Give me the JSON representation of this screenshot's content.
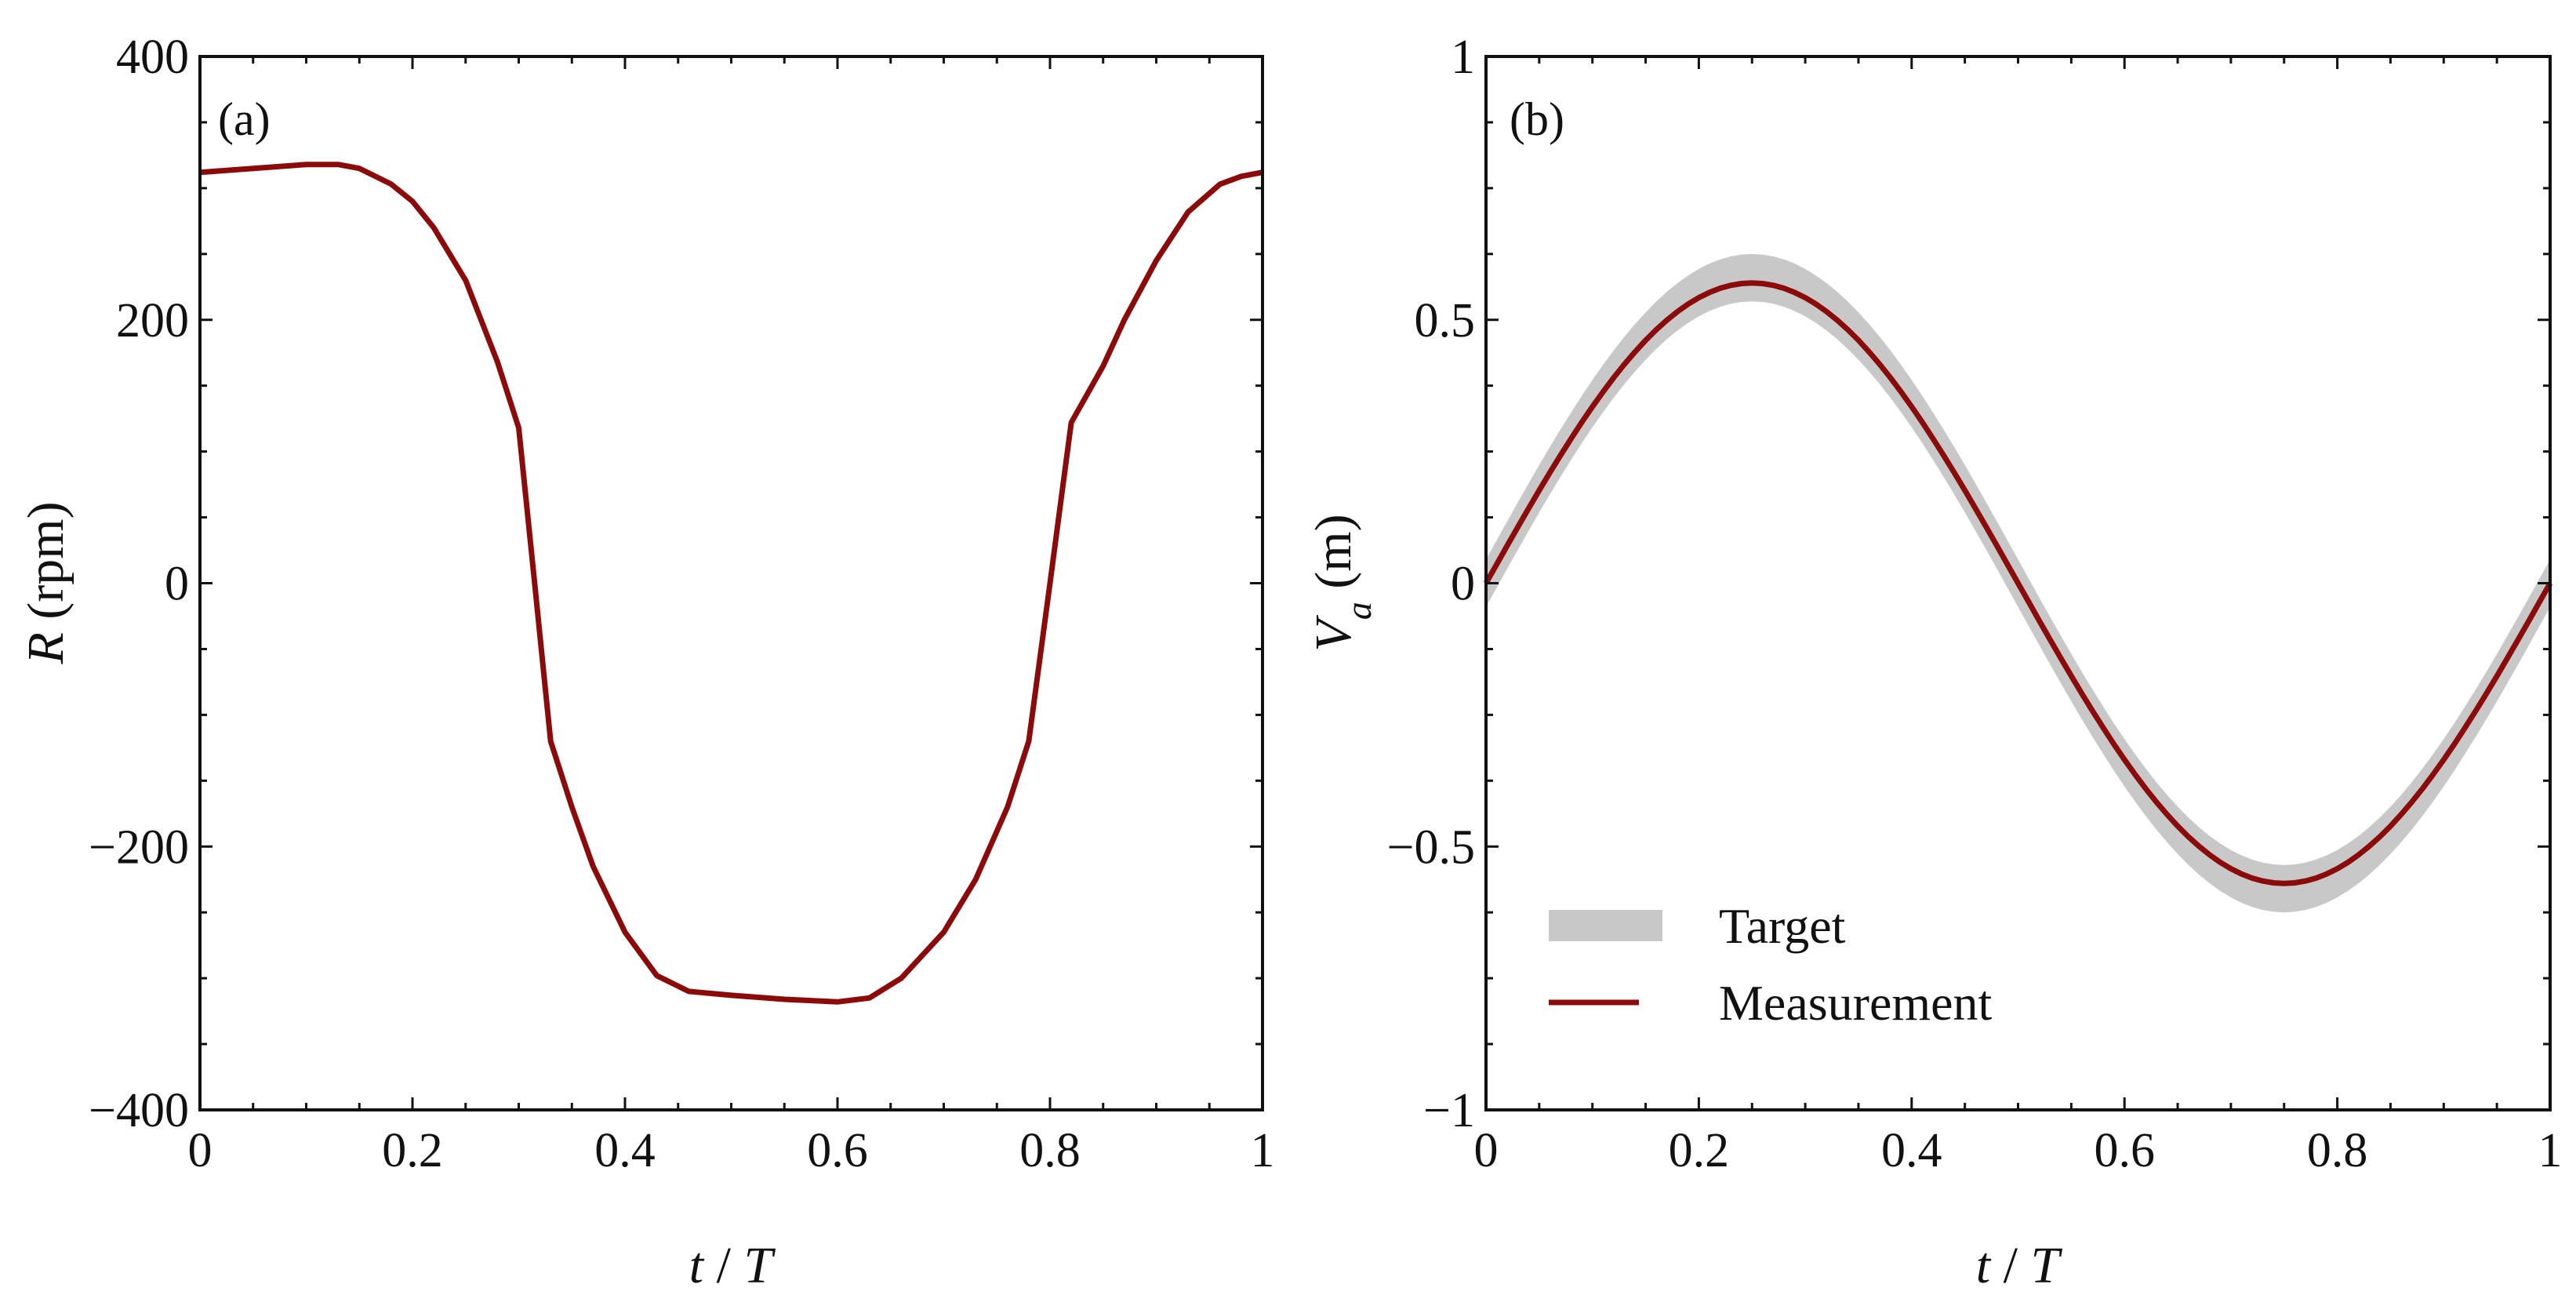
{
  "chart_data": [
    {
      "id": "a",
      "type": "line",
      "panel_label": "(a)",
      "title": "",
      "xlabel": {
        "italic": "t",
        "sep": " / ",
        "italic2": "T"
      },
      "ylabel": {
        "italic": "R",
        "rest": " (rpm)"
      },
      "xlim": [
        0,
        1
      ],
      "ylim": [
        -400,
        400
      ],
      "xticks": [
        0,
        0.2,
        0.4,
        0.6,
        0.8,
        1
      ],
      "xtick_labels": [
        "0",
        "0.2",
        "0.4",
        "0.6",
        "0.8",
        "1"
      ],
      "yticks": [
        -400,
        -200,
        0,
        200,
        400
      ],
      "ytick_labels": [
        "−400",
        "−200",
        "0",
        "200",
        "400"
      ],
      "grid": false,
      "series": [
        {
          "name": "R",
          "color": "#8b0a0a",
          "x": [
            0,
            0.05,
            0.1,
            0.13,
            0.15,
            0.18,
            0.2,
            0.22,
            0.25,
            0.28,
            0.3,
            0.315,
            0.33,
            0.35,
            0.37,
            0.4,
            0.43,
            0.46,
            0.5,
            0.55,
            0.6,
            0.63,
            0.66,
            0.7,
            0.73,
            0.76,
            0.78,
            0.8,
            0.82,
            0.85,
            0.87,
            0.9,
            0.93,
            0.96,
            0.98,
            1
          ],
          "y": [
            312,
            315,
            318,
            318,
            315,
            303,
            290,
            270,
            230,
            168,
            118,
            0,
            -120,
            -170,
            -215,
            -265,
            -298,
            -310,
            -313,
            -316,
            -318,
            -315,
            -300,
            -265,
            -225,
            -170,
            -120,
            0,
            122,
            165,
            200,
            245,
            282,
            303,
            309,
            312
          ]
        }
      ]
    },
    {
      "id": "b",
      "type": "line",
      "panel_label": "(b)",
      "title": "",
      "xlabel": {
        "italic": "t",
        "sep": " / ",
        "italic2": "T"
      },
      "ylabel": {
        "italic": "V",
        "sub": "a",
        "rest": " (m)"
      },
      "xlim": [
        0,
        1
      ],
      "ylim": [
        -1,
        1
      ],
      "xticks": [
        0,
        0.2,
        0.4,
        0.6,
        0.8,
        1
      ],
      "xtick_labels": [
        "0",
        "0.2",
        "0.4",
        "0.6",
        "0.8",
        "1"
      ],
      "yticks": [
        -1,
        -0.5,
        0,
        0.5,
        1
      ],
      "ytick_labels": [
        "−1",
        "−0.5",
        "0",
        "0.5",
        "1"
      ],
      "grid": false,
      "series": [
        {
          "name": "Target",
          "style": "band",
          "color": "#c8c8c8",
          "amplitude": 0.58,
          "band_halfwidth": 0.045,
          "x_step": 0.01
        },
        {
          "name": "Measurement",
          "style": "line",
          "color": "#8b0a0a",
          "amplitude": 0.57,
          "x_step": 0.01
        }
      ],
      "legend": {
        "position": "bottom-left",
        "entries": [
          {
            "label": "Target",
            "color": "#c8c8c8",
            "style": "band"
          },
          {
            "label": "Measurement",
            "color": "#8b0a0a",
            "style": "line"
          }
        ]
      }
    }
  ]
}
